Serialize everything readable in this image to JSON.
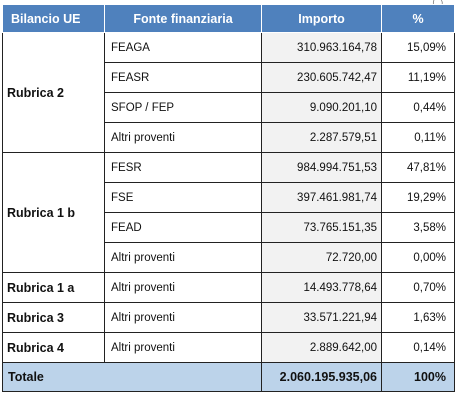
{
  "fragment": "(...)",
  "headers": [
    "Bilancio UE",
    "Fonte finanziaria",
    "Importo",
    "%"
  ],
  "groups": {
    "r2": "Rubrica 2",
    "r1b": "Rubrica 1 b",
    "r1a": "Rubrica 1 a",
    "r3": "Rubrica 3",
    "r4": "Rubrica 4"
  },
  "rows": [
    {
      "source": "FEAGA",
      "amount": "310.963.164,78",
      "pct": "15,09%"
    },
    {
      "source": "FEASR",
      "amount": "230.605.742,47",
      "pct": "11,19%"
    },
    {
      "source": "SFOP / FEP",
      "amount": "9.090.201,10",
      "pct": "0,44%"
    },
    {
      "source": "Altri proventi",
      "amount": "2.287.579,51",
      "pct": "0,11%"
    },
    {
      "source": "FESR",
      "amount": "984.994.751,53",
      "pct": "47,81%"
    },
    {
      "source": "FSE",
      "amount": "397.461.981,74",
      "pct": "19,29%"
    },
    {
      "source": "FEAD",
      "amount": "73.765.151,35",
      "pct": "3,58%"
    },
    {
      "source": "Altri proventi",
      "amount": "72.720,00",
      "pct": "0,00%"
    },
    {
      "source": "Altri proventi",
      "amount": "14.493.778,64",
      "pct": "0,70%"
    },
    {
      "source": "Altri proventi",
      "amount": "33.571.221,94",
      "pct": "1,63%"
    },
    {
      "source": "Altri proventi",
      "amount": "2.889.642,00",
      "pct": "0,14%"
    }
  ],
  "total": {
    "label": "Totale",
    "amount": "2.060.195.935,06",
    "pct": "100%"
  }
}
